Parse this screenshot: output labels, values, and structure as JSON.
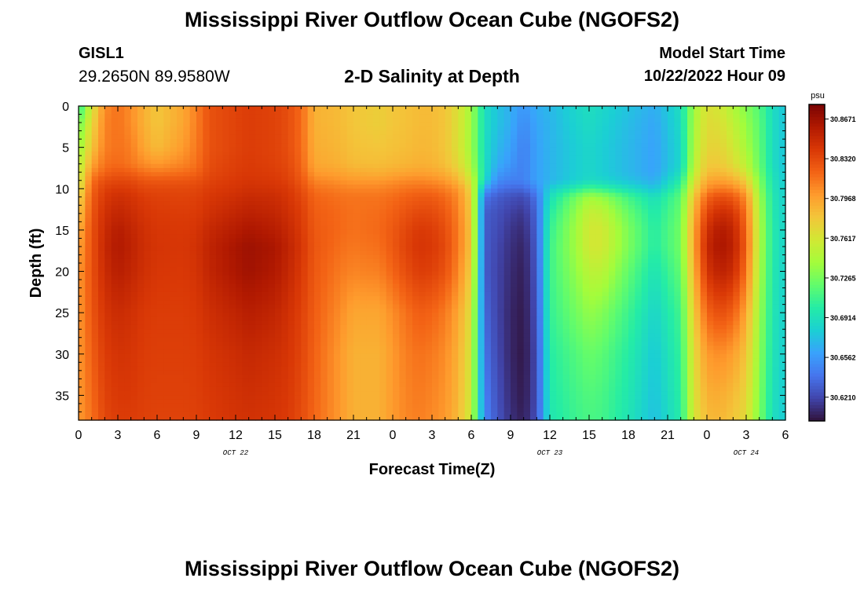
{
  "page": {
    "title_top": "Mississippi River Outflow Ocean Cube (NGOFS2)",
    "title_bottom": "Mississippi River Outflow Ocean Cube (NGOFS2)",
    "station_id": "GISL1",
    "station_coords": "29.2650N  89.9580W",
    "subtitle": "2-D Salinity at Depth",
    "model_start_label": "Model Start Time",
    "model_start_value": "10/22/2022 Hour 09"
  },
  "chart_data": {
    "type": "heatmap",
    "title": "2-D Salinity at Depth",
    "xlabel": "Forecast Time(Z)",
    "ylabel": "Depth (ft)",
    "x_tick_labels": [
      "0",
      "3",
      "6",
      "9",
      "12",
      "15",
      "18",
      "21",
      "0",
      "3",
      "6",
      "9",
      "12",
      "15",
      "18",
      "21",
      "0",
      "3",
      "6"
    ],
    "x_tick_hours": [
      0,
      3,
      6,
      9,
      12,
      15,
      18,
      21,
      24,
      27,
      30,
      33,
      36,
      39,
      42,
      45,
      48,
      51,
      54
    ],
    "xlim": [
      0,
      54
    ],
    "date_labels": [
      {
        "text": "OCT 22",
        "hour": 12
      },
      {
        "text": "OCT 23",
        "hour": 36
      },
      {
        "text": "OCT 24",
        "hour": 51
      }
    ],
    "y_tick_labels": [
      "0",
      "5",
      "10",
      "15",
      "20",
      "25",
      "30",
      "35"
    ],
    "y_ticks": [
      0,
      5,
      10,
      15,
      20,
      25,
      30,
      35
    ],
    "ylim": [
      0,
      38
    ],
    "y_inverted": true,
    "colorbar": {
      "unit_label": "psu",
      "tick_labels": [
        "30.8671",
        "30.8320",
        "30.7968",
        "30.7617",
        "30.7265",
        "30.6914",
        "30.6562",
        "30.6210"
      ],
      "tick_values": [
        30.8671,
        30.832,
        30.7968,
        30.7617,
        30.7265,
        30.6914,
        30.6562,
        30.621
      ],
      "vmin": 30.6,
      "vmax": 30.88,
      "colormap": [
        "#30123b",
        "#4145ab",
        "#4675ed",
        "#39a2fc",
        "#1bcfd4",
        "#24eca6",
        "#61fc6c",
        "#a4fc3b",
        "#d1e834",
        "#f3c63a",
        "#fe9b2d",
        "#f36315",
        "#d93806",
        "#b11901",
        "#7a0403"
      ]
    },
    "hour_nodes": [
      0,
      1,
      2,
      3,
      4,
      5,
      6,
      8,
      9,
      10,
      12,
      13,
      15,
      16,
      17,
      18,
      20,
      21,
      23,
      24,
      25,
      26,
      27,
      28,
      29,
      30,
      31,
      32,
      33,
      34,
      35,
      36,
      38,
      39,
      40,
      42,
      44,
      46,
      47,
      48,
      49,
      50,
      51,
      52,
      53,
      54
    ],
    "depth_nodes": [
      0,
      2,
      5,
      7,
      8,
      9,
      10,
      11,
      13,
      15,
      17,
      20,
      25,
      30,
      35,
      38
    ],
    "salinity_profiles": [
      [
        30.7,
        30.72,
        30.735,
        30.745,
        30.75,
        30.755,
        30.76,
        30.77,
        30.78,
        30.79,
        30.795,
        30.8,
        30.8,
        30.8,
        30.8,
        30.8
      ],
      [
        30.76,
        30.77,
        30.78,
        30.795,
        30.805,
        30.815,
        30.82,
        30.823,
        30.826,
        30.828,
        30.828,
        30.828,
        30.826,
        30.822,
        30.818,
        30.815
      ],
      [
        30.805,
        30.808,
        30.81,
        30.815,
        30.82,
        30.83,
        30.836,
        30.84,
        30.845,
        30.848,
        30.85,
        30.848,
        30.842,
        30.838,
        30.835,
        30.833
      ],
      [
        30.815,
        30.815,
        30.815,
        30.818,
        30.825,
        30.833,
        30.84,
        30.846,
        30.852,
        30.858,
        30.86,
        30.857,
        30.848,
        30.843,
        30.84,
        30.838
      ],
      [
        30.805,
        30.805,
        30.81,
        30.813,
        30.822,
        30.832,
        30.838,
        30.843,
        30.848,
        30.852,
        30.854,
        30.852,
        30.845,
        30.842,
        30.84,
        30.838
      ],
      [
        30.79,
        30.79,
        30.795,
        30.805,
        30.815,
        30.826,
        30.833,
        30.838,
        30.842,
        30.845,
        30.846,
        30.845,
        30.84,
        30.838,
        30.837,
        30.836
      ],
      [
        30.78,
        30.78,
        30.785,
        30.8,
        30.812,
        30.825,
        30.832,
        30.836,
        30.839,
        30.841,
        30.842,
        30.841,
        30.838,
        30.837,
        30.836,
        30.835
      ],
      [
        30.795,
        30.795,
        30.8,
        30.808,
        30.816,
        30.826,
        30.832,
        30.835,
        30.838,
        30.84,
        30.841,
        30.84,
        30.838,
        30.837,
        30.836,
        30.835
      ],
      [
        30.81,
        30.81,
        30.812,
        30.815,
        30.82,
        30.828,
        30.833,
        30.836,
        30.839,
        30.842,
        30.844,
        30.843,
        30.84,
        30.838,
        30.837,
        30.836
      ],
      [
        30.828,
        30.828,
        30.828,
        30.83,
        30.832,
        30.835,
        30.838,
        30.841,
        30.845,
        30.85,
        30.853,
        30.852,
        30.846,
        30.842,
        30.84,
        30.839
      ],
      [
        30.835,
        30.835,
        30.835,
        30.837,
        30.838,
        30.84,
        30.842,
        30.846,
        30.852,
        30.858,
        30.863,
        30.862,
        30.853,
        30.847,
        30.844,
        30.843
      ],
      [
        30.838,
        30.838,
        30.838,
        30.839,
        30.84,
        30.842,
        30.845,
        30.849,
        30.855,
        30.862,
        30.867,
        30.866,
        30.857,
        30.85,
        30.846,
        30.844
      ],
      [
        30.835,
        30.835,
        30.835,
        30.836,
        30.838,
        30.84,
        30.843,
        30.847,
        30.852,
        30.857,
        30.862,
        30.86,
        30.852,
        30.846,
        30.843,
        30.842
      ],
      [
        30.83,
        30.83,
        30.83,
        30.832,
        30.834,
        30.836,
        30.84,
        30.842,
        30.846,
        30.85,
        30.853,
        30.851,
        30.845,
        30.842,
        30.84,
        30.839
      ],
      [
        30.818,
        30.818,
        30.818,
        30.82,
        30.822,
        30.826,
        30.83,
        30.834,
        30.838,
        30.84,
        30.842,
        30.84,
        30.836,
        30.834,
        30.832,
        30.831
      ],
      [
        30.79,
        30.79,
        30.792,
        30.795,
        30.8,
        30.808,
        30.815,
        30.82,
        30.823,
        30.825,
        30.826,
        30.825,
        30.823,
        30.821,
        30.82,
        30.819
      ],
      [
        30.785,
        30.785,
        30.787,
        30.79,
        30.796,
        30.803,
        30.81,
        30.815,
        30.818,
        30.818,
        30.816,
        30.812,
        30.805,
        30.8,
        30.8,
        30.8
      ],
      [
        30.78,
        30.78,
        30.782,
        30.785,
        30.792,
        30.8,
        30.808,
        30.814,
        30.815,
        30.815,
        30.813,
        30.808,
        30.795,
        30.79,
        30.79,
        30.79
      ],
      [
        30.775,
        30.775,
        30.78,
        30.784,
        30.79,
        30.8,
        30.808,
        30.814,
        30.817,
        30.818,
        30.816,
        30.81,
        30.795,
        30.79,
        30.79,
        30.79
      ],
      [
        30.78,
        30.78,
        30.782,
        30.786,
        30.793,
        30.803,
        30.811,
        30.817,
        30.822,
        30.825,
        30.825,
        30.82,
        30.805,
        30.8,
        30.8,
        30.8
      ],
      [
        30.782,
        30.782,
        30.784,
        30.788,
        30.795,
        30.806,
        30.814,
        30.821,
        30.828,
        30.833,
        30.835,
        30.83,
        30.815,
        30.81,
        30.808,
        30.807
      ],
      [
        30.785,
        30.785,
        30.787,
        30.79,
        30.797,
        30.807,
        30.816,
        30.824,
        30.833,
        30.84,
        30.842,
        30.838,
        30.823,
        30.815,
        30.812,
        30.81
      ],
      [
        30.785,
        30.785,
        30.786,
        30.789,
        30.795,
        30.805,
        30.815,
        30.824,
        30.832,
        30.838,
        30.84,
        30.836,
        30.82,
        30.812,
        30.808,
        30.806
      ],
      [
        30.78,
        30.78,
        30.78,
        30.783,
        30.79,
        30.8,
        30.81,
        30.818,
        30.825,
        30.83,
        30.832,
        30.828,
        30.812,
        30.805,
        30.802,
        30.8
      ],
      [
        30.765,
        30.765,
        30.765,
        30.77,
        30.778,
        30.788,
        30.8,
        30.806,
        30.81,
        30.812,
        30.812,
        30.808,
        30.795,
        30.79,
        30.788,
        30.786
      ],
      [
        30.74,
        30.74,
        30.74,
        30.745,
        30.75,
        30.76,
        30.77,
        30.775,
        30.778,
        30.78,
        30.78,
        30.775,
        30.765,
        30.76,
        30.758,
        30.756
      ],
      [
        30.69,
        30.69,
        30.69,
        30.69,
        30.69,
        30.685,
        30.66,
        30.64,
        30.63,
        30.63,
        30.63,
        30.63,
        30.635,
        30.64,
        30.645,
        30.648
      ],
      [
        30.675,
        30.675,
        30.67,
        30.665,
        30.658,
        30.65,
        30.64,
        30.63,
        30.625,
        30.623,
        30.621,
        30.62,
        30.62,
        30.622,
        30.625,
        30.627
      ],
      [
        30.665,
        30.665,
        30.66,
        30.655,
        30.65,
        30.645,
        30.635,
        30.625,
        30.618,
        30.614,
        30.612,
        30.61,
        30.608,
        30.608,
        30.61,
        30.612
      ],
      [
        30.655,
        30.65,
        30.645,
        30.645,
        30.645,
        30.645,
        30.635,
        30.622,
        30.614,
        30.61,
        30.607,
        30.605,
        30.603,
        30.602,
        30.603,
        30.605
      ],
      [
        30.665,
        30.662,
        30.66,
        30.66,
        30.66,
        30.66,
        30.65,
        30.64,
        30.634,
        30.632,
        30.63,
        30.628,
        30.625,
        30.623,
        30.623,
        30.625
      ],
      [
        30.67,
        30.668,
        30.668,
        30.668,
        30.668,
        30.668,
        30.68,
        30.69,
        30.7,
        30.705,
        30.708,
        30.708,
        30.705,
        30.7,
        30.697,
        30.695
      ],
      [
        30.685,
        30.683,
        30.68,
        30.68,
        30.68,
        30.682,
        30.7,
        30.725,
        30.735,
        30.74,
        30.74,
        30.735,
        30.725,
        30.715,
        30.71,
        30.708
      ],
      [
        30.69,
        30.688,
        30.685,
        30.685,
        30.685,
        30.688,
        30.71,
        30.74,
        30.755,
        30.76,
        30.76,
        30.75,
        30.735,
        30.722,
        30.715,
        30.712
      ],
      [
        30.685,
        30.683,
        30.68,
        30.68,
        30.68,
        30.685,
        30.705,
        30.735,
        30.752,
        30.76,
        30.76,
        30.75,
        30.73,
        30.718,
        30.712,
        30.71
      ],
      [
        30.675,
        30.672,
        30.67,
        30.67,
        30.67,
        30.675,
        30.69,
        30.71,
        30.722,
        30.728,
        30.728,
        30.72,
        30.708,
        30.7,
        30.696,
        30.694
      ],
      [
        30.665,
        30.662,
        30.66,
        30.66,
        30.66,
        30.665,
        30.675,
        30.69,
        30.697,
        30.7,
        30.7,
        30.693,
        30.684,
        30.678,
        30.675,
        30.673
      ],
      [
        30.69,
        30.688,
        30.685,
        30.685,
        30.69,
        30.7,
        30.71,
        30.718,
        30.722,
        30.725,
        30.725,
        30.72,
        30.71,
        30.705,
        30.702,
        30.7
      ],
      [
        30.74,
        30.742,
        30.745,
        30.748,
        30.752,
        30.76,
        30.77,
        30.78,
        30.79,
        30.795,
        30.795,
        30.79,
        30.777,
        30.768,
        30.764,
        30.762
      ],
      [
        30.765,
        30.768,
        30.772,
        30.778,
        30.784,
        30.794,
        30.805,
        30.82,
        30.835,
        30.845,
        30.85,
        30.843,
        30.82,
        30.8,
        30.79,
        30.785
      ],
      [
        30.76,
        30.765,
        30.772,
        30.778,
        30.786,
        30.798,
        30.812,
        30.83,
        30.848,
        30.86,
        30.863,
        30.855,
        30.83,
        30.805,
        30.792,
        30.787
      ],
      [
        30.745,
        30.752,
        30.76,
        30.768,
        30.778,
        30.792,
        30.808,
        30.825,
        30.843,
        30.852,
        30.855,
        30.848,
        30.822,
        30.798,
        30.785,
        30.78
      ],
      [
        30.73,
        30.735,
        30.742,
        30.75,
        30.76,
        30.775,
        30.79,
        30.804,
        30.815,
        30.82,
        30.822,
        30.815,
        30.795,
        30.78,
        30.772,
        30.768
      ],
      [
        30.715,
        30.718,
        30.72,
        30.722,
        30.725,
        30.73,
        30.735,
        30.74,
        30.744,
        30.746,
        30.746,
        30.744,
        30.738,
        30.734,
        30.73,
        30.728
      ],
      [
        30.69,
        30.69,
        30.69,
        30.69,
        30.692,
        30.694,
        30.695,
        30.697,
        30.698,
        30.699,
        30.699,
        30.698,
        30.696,
        30.694,
        30.692,
        30.691
      ],
      [
        30.675,
        30.675,
        30.675,
        30.675,
        30.677,
        30.678,
        30.68,
        30.681,
        30.682,
        30.683,
        30.683,
        30.682,
        30.681,
        30.68,
        30.679,
        30.678
      ]
    ]
  }
}
